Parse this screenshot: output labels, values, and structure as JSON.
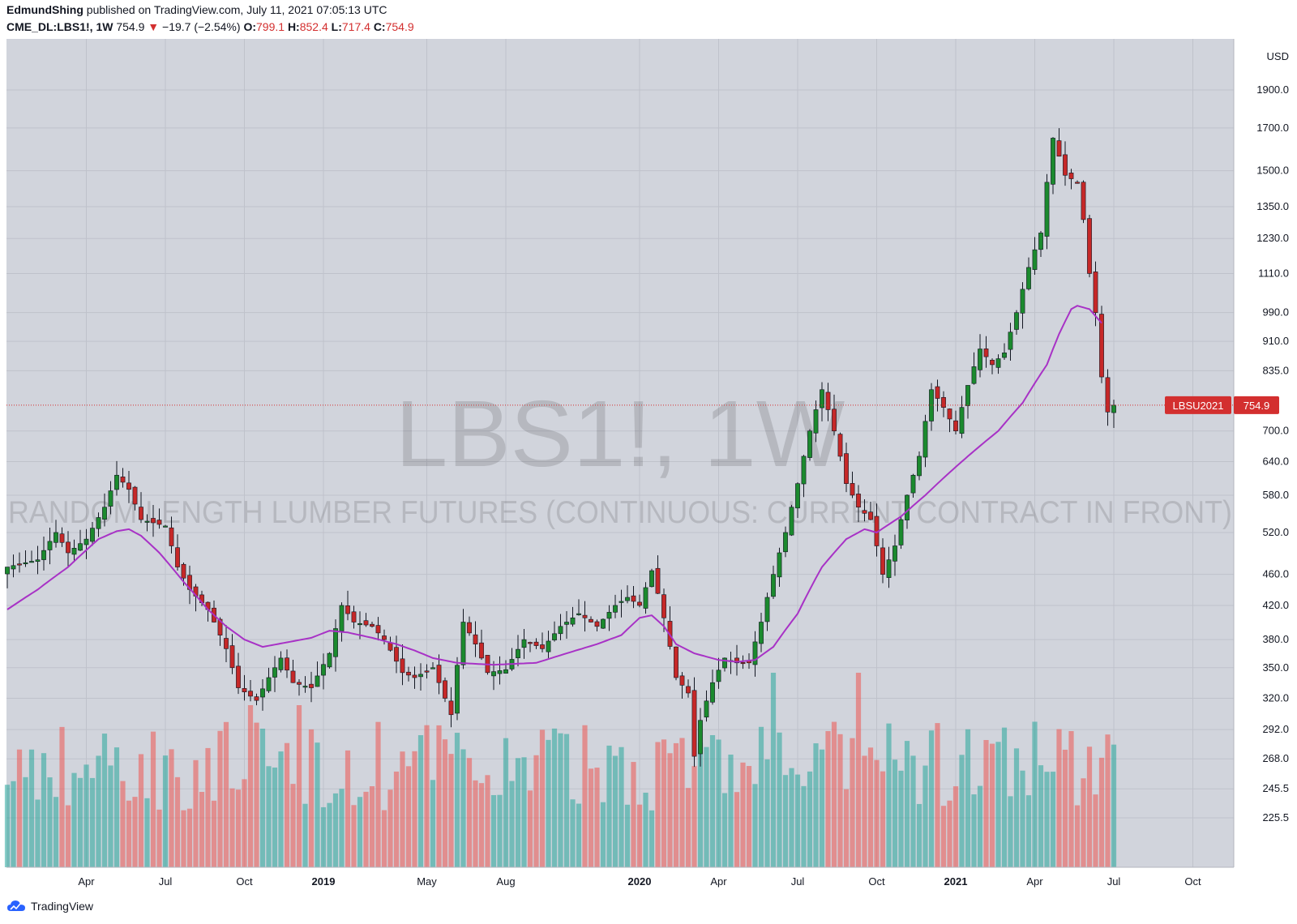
{
  "header": {
    "author": "EdmundShing",
    "published_text": "published on TradingView.com, July 11, 2021 07:05:13 UTC",
    "symbol": "CME_DL:LBS1!, 1W",
    "last": "754.9",
    "change": "−19.7 (−2.54%)",
    "o_label": "O:",
    "o_val": "799.1",
    "h_label": "H:",
    "h_val": "852.4",
    "l_label": "L:",
    "l_val": "717.4",
    "c_label": "C:",
    "c_val": "754.9"
  },
  "watermark": {
    "line1": "LBS1!, 1W",
    "line2": "RANDOM LENGTH LUMBER FUTURES (CONTINUOUS: CURRENT CONTRACT IN FRONT)"
  },
  "price_tag": {
    "contract": "LBSU2021",
    "price": "754.9",
    "value": 754.9
  },
  "brand": {
    "name": "TradingView"
  },
  "colors": {
    "up": "#26a69a",
    "down": "#ef5350",
    "candle_up": "#1b8a2e",
    "candle_down": "#c62828",
    "ma": "#a832c6",
    "bg": "#d1d4dc",
    "tag": "#d32f2f"
  },
  "chart_data": {
    "type": "candlestick",
    "interval": "1W",
    "currency": "USD",
    "y_scale": "log",
    "y_ticks": [
      "1900.0",
      "1700.0",
      "1500.0",
      "1350.0",
      "1230.0",
      "1110.0",
      "990.0",
      "910.0",
      "835.0",
      "754.9",
      "700.0",
      "640.0",
      "580.0",
      "520.0",
      "460.0",
      "420.0",
      "380.0",
      "350.0",
      "320.0",
      "292.0",
      "268.0",
      "245.5",
      "225.5"
    ],
    "y_tick_values": [
      1900,
      1700,
      1500,
      1350,
      1230,
      1110,
      990,
      910,
      835,
      754.9,
      700,
      640,
      580,
      520,
      460,
      420,
      380,
      350,
      320,
      292,
      268,
      245.5,
      225.5
    ],
    "x_labels": [
      {
        "label": "Apr",
        "week": 13,
        "bold": false
      },
      {
        "label": "Jul",
        "week": 26,
        "bold": false
      },
      {
        "label": "Oct",
        "week": 39,
        "bold": false
      },
      {
        "label": "2019",
        "week": 52,
        "bold": true
      },
      {
        "label": "May",
        "week": 69,
        "bold": false
      },
      {
        "label": "Aug",
        "week": 82,
        "bold": false
      },
      {
        "label": "2020",
        "week": 104,
        "bold": true
      },
      {
        "label": "Apr",
        "week": 117,
        "bold": false
      },
      {
        "label": "Jul",
        "week": 130,
        "bold": false
      },
      {
        "label": "Oct",
        "week": 143,
        "bold": false
      },
      {
        "label": "2021",
        "week": 156,
        "bold": true
      },
      {
        "label": "Apr",
        "week": 169,
        "bold": false
      },
      {
        "label": "Jul",
        "week": 182,
        "bold": false
      },
      {
        "label": "Oct",
        "week": 195,
        "bold": false
      }
    ],
    "close_anchors": [
      [
        0,
        470
      ],
      [
        5,
        480
      ],
      [
        8,
        520
      ],
      [
        10,
        490
      ],
      [
        13,
        510
      ],
      [
        16,
        560
      ],
      [
        18,
        615
      ],
      [
        20,
        590
      ],
      [
        22,
        540
      ],
      [
        26,
        530
      ],
      [
        28,
        470
      ],
      [
        30,
        440
      ],
      [
        33,
        415
      ],
      [
        36,
        370
      ],
      [
        38,
        330
      ],
      [
        41,
        318
      ],
      [
        43,
        340
      ],
      [
        45,
        360
      ],
      [
        47,
        335
      ],
      [
        50,
        330
      ],
      [
        53,
        365
      ],
      [
        55,
        420
      ],
      [
        57,
        400
      ],
      [
        60,
        395
      ],
      [
        62,
        380
      ],
      [
        65,
        345
      ],
      [
        67,
        340
      ],
      [
        70,
        350
      ],
      [
        71,
        335
      ],
      [
        73,
        305
      ],
      [
        75,
        400
      ],
      [
        77,
        375
      ],
      [
        79,
        345
      ],
      [
        82,
        348
      ],
      [
        85,
        380
      ],
      [
        88,
        370
      ],
      [
        91,
        395
      ],
      [
        94,
        410
      ],
      [
        97,
        395
      ],
      [
        100,
        420
      ],
      [
        102,
        430
      ],
      [
        104,
        420
      ],
      [
        106,
        465
      ],
      [
        108,
        405
      ],
      [
        110,
        340
      ],
      [
        112,
        325
      ],
      [
        113,
        270
      ],
      [
        114,
        300
      ],
      [
        116,
        335
      ],
      [
        118,
        360
      ],
      [
        120,
        355
      ],
      [
        122,
        355
      ],
      [
        124,
        400
      ],
      [
        126,
        460
      ],
      [
        128,
        520
      ],
      [
        130,
        600
      ],
      [
        132,
        700
      ],
      [
        134,
        790
      ],
      [
        136,
        700
      ],
      [
        138,
        600
      ],
      [
        140,
        560
      ],
      [
        142,
        540
      ],
      [
        144,
        460
      ],
      [
        146,
        500
      ],
      [
        148,
        580
      ],
      [
        150,
        650
      ],
      [
        152,
        790
      ],
      [
        154,
        750
      ],
      [
        156,
        700
      ],
      [
        158,
        800
      ],
      [
        160,
        890
      ],
      [
        162,
        850
      ],
      [
        164,
        880
      ],
      [
        166,
        990
      ],
      [
        168,
        1130
      ],
      [
        170,
        1250
      ],
      [
        172,
        1650
      ],
      [
        174,
        1480
      ],
      [
        176,
        1450
      ],
      [
        177,
        1300
      ],
      [
        178,
        1110
      ],
      [
        179,
        990
      ],
      [
        180,
        820
      ],
      [
        181,
        740
      ],
      [
        182,
        754.9
      ]
    ],
    "ma_anchors": [
      [
        0,
        415
      ],
      [
        5,
        440
      ],
      [
        10,
        470
      ],
      [
        15,
        510
      ],
      [
        18,
        522
      ],
      [
        20,
        525
      ],
      [
        22,
        515
      ],
      [
        25,
        490
      ],
      [
        29,
        450
      ],
      [
        33,
        415
      ],
      [
        36,
        395
      ],
      [
        39,
        380
      ],
      [
        42,
        372
      ],
      [
        46,
        377
      ],
      [
        50,
        382
      ],
      [
        53,
        390
      ],
      [
        56,
        388
      ],
      [
        60,
        382
      ],
      [
        64,
        375
      ],
      [
        67,
        368
      ],
      [
        70,
        360
      ],
      [
        74,
        355
      ],
      [
        80,
        353
      ],
      [
        87,
        355
      ],
      [
        92,
        365
      ],
      [
        97,
        375
      ],
      [
        101,
        385
      ],
      [
        104,
        405
      ],
      [
        106,
        408
      ],
      [
        108,
        395
      ],
      [
        110,
        375
      ],
      [
        113,
        365
      ],
      [
        117,
        358
      ],
      [
        120,
        356
      ],
      [
        123,
        358
      ],
      [
        126,
        372
      ],
      [
        130,
        410
      ],
      [
        134,
        470
      ],
      [
        138,
        510
      ],
      [
        141,
        525
      ],
      [
        143,
        520
      ],
      [
        147,
        545
      ],
      [
        151,
        580
      ],
      [
        155,
        620
      ],
      [
        159,
        660
      ],
      [
        163,
        700
      ],
      [
        167,
        760
      ],
      [
        171,
        850
      ],
      [
        173,
        930
      ],
      [
        175,
        1000
      ],
      [
        176,
        1010
      ],
      [
        178,
        1000
      ],
      [
        180,
        960
      ]
    ],
    "volume_note": "volume histogram along the bottom; colour follows candle direction",
    "last_price": 754.9
  }
}
